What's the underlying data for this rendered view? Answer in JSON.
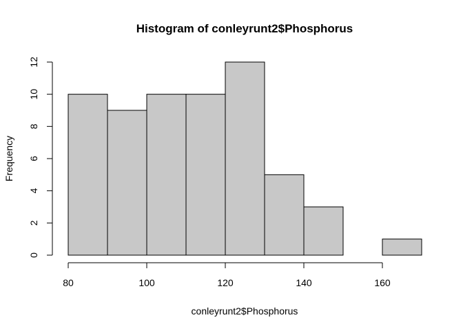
{
  "chart_data": {
    "type": "bar",
    "title": "Histogram of conleyrunt2$Phosphorus",
    "xlabel": "conleyrunt2$Phosphorus",
    "ylabel": "Frequency",
    "bins": [
      {
        "from": 80,
        "to": 90,
        "count": 10
      },
      {
        "from": 90,
        "to": 100,
        "count": 9
      },
      {
        "from": 100,
        "to": 110,
        "count": 10
      },
      {
        "from": 110,
        "to": 120,
        "count": 10
      },
      {
        "from": 120,
        "to": 130,
        "count": 12
      },
      {
        "from": 130,
        "to": 140,
        "count": 5
      },
      {
        "from": 140,
        "to": 150,
        "count": 3
      },
      {
        "from": 150,
        "to": 160,
        "count": 0
      },
      {
        "from": 160,
        "to": 170,
        "count": 1
      }
    ],
    "x_ticks": [
      "80",
      "100",
      "120",
      "140",
      "160"
    ],
    "x_tick_values": [
      80,
      100,
      120,
      140,
      160
    ],
    "y_ticks": [
      "0",
      "2",
      "4",
      "6",
      "8",
      "10",
      "12"
    ],
    "y_tick_values": [
      0,
      2,
      4,
      6,
      8,
      10,
      12
    ],
    "xlim": [
      80,
      170
    ],
    "ylim": [
      0,
      12
    ],
    "grid": false,
    "colors": {
      "bar_fill": "#c8c8c8",
      "bar_stroke": "#000000"
    }
  }
}
